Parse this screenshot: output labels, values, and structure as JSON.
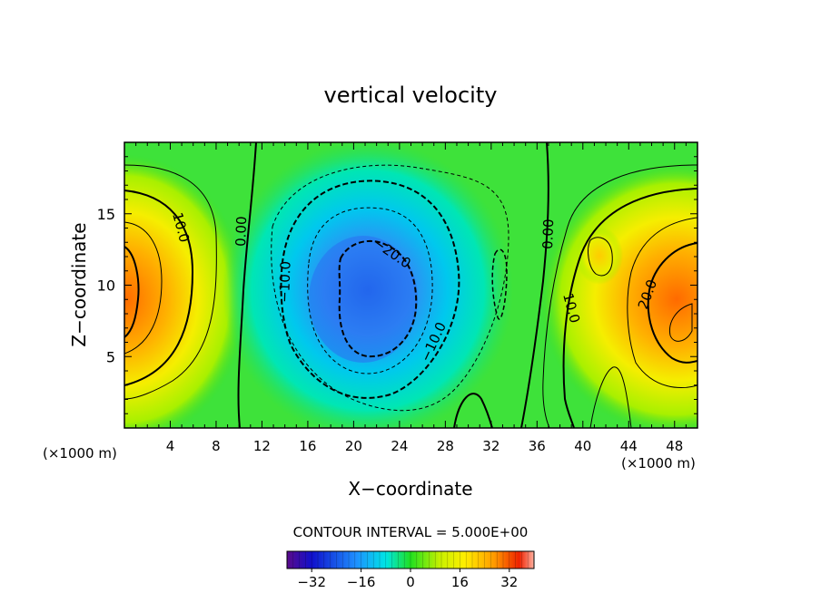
{
  "chart_data": {
    "type": "heatmap",
    "title": "vertical velocity",
    "xlabel": "X−coordinate",
    "ylabel": "Z−coordinate",
    "x_unit_left": "(×1000 m)",
    "x_unit_right": "(×1000 m)",
    "xlim": [
      0,
      50
    ],
    "ylim": [
      0,
      20
    ],
    "x_ticks": [
      4,
      8,
      12,
      16,
      20,
      24,
      28,
      32,
      36,
      40,
      44,
      48
    ],
    "y_ticks": [
      5,
      10,
      15
    ],
    "contour_interval_text": "CONTOUR INTERVAL = 5.000E+00",
    "colorbar": {
      "min": -40,
      "max": 40,
      "ticks": [
        -32,
        -16,
        0,
        16,
        32
      ],
      "tick_labels": [
        "−32",
        "−16",
        "0",
        "16",
        "32"
      ]
    },
    "contour_labels": [
      "10.0",
      "0.00",
      "−10.0",
      "−20.0",
      "−10.0",
      "0.00",
      "10.0",
      "20.0"
    ],
    "features": [
      {
        "sign": "positive",
        "x": 0.5,
        "z": 10,
        "peak": 30
      },
      {
        "sign": "negative",
        "x": 20.5,
        "z": 9,
        "peak": -25
      },
      {
        "sign": "positive",
        "x": 48,
        "z": 9,
        "peak": 30
      },
      {
        "sign": "positive",
        "x": 41.5,
        "z": 12,
        "peak": 12
      }
    ],
    "grid": false
  }
}
